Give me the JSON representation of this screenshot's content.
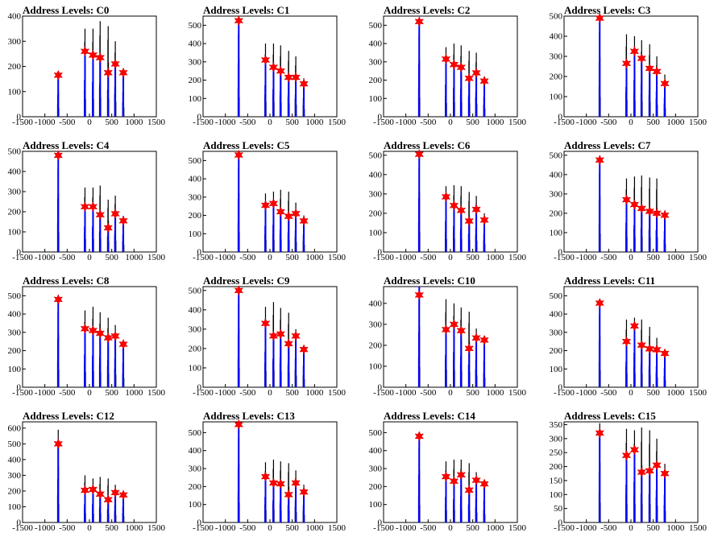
{
  "colors": {
    "histogram": "#0000ff",
    "peak_marker": "#ff0000",
    "axis": "#000000",
    "background": "#ffffff"
  },
  "chart_data": [
    {
      "title": "Address Levels: C0",
      "type": "bar",
      "xlim": [
        -1500,
        1500
      ],
      "ylim": [
        0,
        400
      ],
      "xticks": [
        "-1500",
        "-1000",
        "-500",
        "0",
        "500",
        "1000",
        "1500"
      ],
      "yticks": [
        "0",
        "100",
        "200",
        "300",
        "400"
      ],
      "peaks": {
        "x": [
          -700,
          -100,
          80,
          240,
          420,
          580,
          760
        ],
        "y": [
          165,
          260,
          245,
          235,
          175,
          210,
          175
        ]
      },
      "black_max": [
        170,
        350,
        350,
        380,
        360,
        300,
        190
      ],
      "blue_max": [
        160,
        265,
        250,
        240,
        180,
        215,
        180
      ]
    },
    {
      "title": "Address Levels: C1",
      "type": "bar",
      "xlim": [
        -1500,
        1500
      ],
      "ylim": [
        0,
        550
      ],
      "xticks": [
        "-1500",
        "-1000",
        "-500",
        "0",
        "500",
        "1000",
        "1500"
      ],
      "yticks": [
        "0",
        "100",
        "200",
        "300",
        "400",
        "500"
      ],
      "peaks": {
        "x": [
          -700,
          -100,
          80,
          240,
          420,
          580,
          760
        ],
        "y": [
          525,
          310,
          270,
          250,
          215,
          215,
          180
        ]
      },
      "black_max": [
        530,
        400,
        400,
        390,
        360,
        330,
        210
      ],
      "blue_max": [
        530,
        315,
        275,
        255,
        220,
        220,
        185
      ]
    },
    {
      "title": "Address Levels: C2",
      "type": "bar",
      "xlim": [
        -1500,
        1500
      ],
      "ylim": [
        0,
        550
      ],
      "xticks": [
        "-1500",
        "-1000",
        "-500",
        "0",
        "500",
        "1000",
        "1500"
      ],
      "yticks": [
        "0",
        "100",
        "200",
        "300",
        "400",
        "500"
      ],
      "peaks": {
        "x": [
          -700,
          -100,
          80,
          240,
          420,
          580,
          760
        ],
        "y": [
          520,
          315,
          285,
          270,
          210,
          240,
          195
        ]
      },
      "black_max": [
        525,
        380,
        400,
        390,
        360,
        350,
        220
      ],
      "blue_max": [
        525,
        320,
        290,
        275,
        215,
        245,
        200
      ]
    },
    {
      "title": "Address Levels: C3",
      "type": "bar",
      "xlim": [
        -1500,
        1500
      ],
      "ylim": [
        0,
        500
      ],
      "xticks": [
        "-1500",
        "-1000",
        "-500",
        "0",
        "500",
        "1000",
        "1500"
      ],
      "yticks": [
        "0",
        "100",
        "200",
        "300",
        "400",
        "500"
      ],
      "peaks": {
        "x": [
          -700,
          -100,
          80,
          240,
          420,
          580,
          760
        ],
        "y": [
          490,
          265,
          325,
          290,
          240,
          225,
          165
        ]
      },
      "black_max": [
        495,
        410,
        400,
        380,
        360,
        300,
        210
      ],
      "blue_max": [
        495,
        270,
        330,
        295,
        245,
        230,
        170
      ]
    },
    {
      "title": "Address Levels: C4",
      "type": "bar",
      "xlim": [
        -1500,
        1500
      ],
      "ylim": [
        0,
        500
      ],
      "xticks": [
        "-1500",
        "-1000",
        "-500",
        "0",
        "500",
        "1000",
        "1500"
      ],
      "yticks": [
        "0",
        "100",
        "200",
        "300",
        "400",
        "500"
      ],
      "peaks": {
        "x": [
          -700,
          -100,
          80,
          240,
          420,
          580,
          760
        ],
        "y": [
          480,
          225,
          225,
          185,
          120,
          190,
          155
        ]
      },
      "black_max": [
        485,
        320,
        320,
        330,
        260,
        280,
        180
      ],
      "blue_max": [
        485,
        230,
        230,
        190,
        125,
        195,
        160
      ]
    },
    {
      "title": "Address Levels: C5",
      "type": "bar",
      "xlim": [
        -1500,
        1500
      ],
      "ylim": [
        0,
        550
      ],
      "xticks": [
        "-1500",
        "-1000",
        "-500",
        "0",
        "500",
        "1000",
        "1500"
      ],
      "yticks": [
        "0",
        "100",
        "200",
        "300",
        "400",
        "500"
      ],
      "peaks": {
        "x": [
          -700,
          -100,
          80,
          240,
          420,
          580,
          760
        ],
        "y": [
          530,
          255,
          265,
          220,
          195,
          210,
          170
        ]
      },
      "black_max": [
        535,
        320,
        330,
        340,
        330,
        270,
        200
      ],
      "blue_max": [
        535,
        260,
        270,
        225,
        200,
        215,
        175
      ]
    },
    {
      "title": "Address Levels: C6",
      "type": "bar",
      "xlim": [
        -1500,
        1500
      ],
      "ylim": [
        0,
        520
      ],
      "xticks": [
        "-1500",
        "-1000",
        "-500",
        "0",
        "500",
        "1000",
        "1500"
      ],
      "yticks": [
        "0",
        "100",
        "200",
        "300",
        "400",
        "500"
      ],
      "peaks": {
        "x": [
          -700,
          -100,
          80,
          240,
          420,
          580,
          760
        ],
        "y": [
          505,
          285,
          240,
          215,
          160,
          220,
          165
        ]
      },
      "black_max": [
        510,
        340,
        345,
        340,
        310,
        290,
        200
      ],
      "blue_max": [
        510,
        290,
        245,
        220,
        165,
        225,
        170
      ]
    },
    {
      "title": "Address Levels: C7",
      "type": "bar",
      "xlim": [
        -1500,
        1500
      ],
      "ylim": [
        0,
        520
      ],
      "xticks": [
        "-1500",
        "-1000",
        "-500",
        "0",
        "500",
        "1000",
        "1500"
      ],
      "yticks": [
        "0",
        "100",
        "200",
        "300",
        "400",
        "500"
      ],
      "peaks": {
        "x": [
          -700,
          -100,
          80,
          240,
          420,
          580,
          760
        ],
        "y": [
          475,
          270,
          245,
          225,
          210,
          200,
          190
        ]
      },
      "black_max": [
        480,
        380,
        390,
        395,
        385,
        380,
        215
      ],
      "blue_max": [
        480,
        275,
        250,
        230,
        215,
        205,
        195
      ]
    },
    {
      "title": "Address Levels: C8",
      "type": "bar",
      "xlim": [
        -1500,
        1500
      ],
      "ylim": [
        0,
        550
      ],
      "xticks": [
        "-1500",
        "-1000",
        "-500",
        "0",
        "500",
        "1000",
        "1500"
      ],
      "yticks": [
        "0",
        "100",
        "200",
        "300",
        "400",
        "500"
      ],
      "peaks": {
        "x": [
          -700,
          -100,
          80,
          240,
          420,
          580,
          760
        ],
        "y": [
          480,
          320,
          310,
          295,
          270,
          280,
          235
        ]
      },
      "black_max": [
        485,
        420,
        440,
        410,
        380,
        340,
        250
      ],
      "blue_max": [
        485,
        325,
        315,
        300,
        275,
        285,
        240
      ]
    },
    {
      "title": "Address Levels: C9",
      "type": "bar",
      "xlim": [
        -1500,
        1500
      ],
      "ylim": [
        0,
        520
      ],
      "xticks": [
        "-1500",
        "-1000",
        "-500",
        "0",
        "500",
        "1000",
        "1500"
      ],
      "yticks": [
        "0",
        "100",
        "200",
        "300",
        "400",
        "500"
      ],
      "peaks": {
        "x": [
          -700,
          -100,
          80,
          240,
          420,
          580,
          760
        ],
        "y": [
          500,
          330,
          265,
          275,
          225,
          265,
          195
        ]
      },
      "black_max": [
        505,
        415,
        440,
        410,
        385,
        300,
        210
      ],
      "blue_max": [
        505,
        335,
        270,
        280,
        230,
        270,
        200
      ]
    },
    {
      "title": "Address Levels: C10",
      "type": "bar",
      "xlim": [
        -1500,
        1500
      ],
      "ylim": [
        0,
        480
      ],
      "xticks": [
        "-1500",
        "-1000",
        "-500",
        "0",
        "500",
        "1000",
        "1500"
      ],
      "yticks": [
        "0",
        "100",
        "200",
        "300",
        "400"
      ],
      "peaks": {
        "x": [
          -700,
          -100,
          80,
          240,
          420,
          580,
          760
        ],
        "y": [
          440,
          275,
          300,
          270,
          185,
          235,
          225
        ]
      },
      "black_max": [
        480,
        420,
        400,
        380,
        360,
        280,
        230
      ],
      "blue_max": [
        480,
        280,
        305,
        275,
        190,
        240,
        230
      ]
    },
    {
      "title": "Address Levels: C11",
      "type": "bar",
      "xlim": [
        -1500,
        1500
      ],
      "ylim": [
        0,
        550
      ],
      "xticks": [
        "-1500",
        "-1000",
        "-500",
        "0",
        "500",
        "1000",
        "1500"
      ],
      "yticks": [
        "0",
        "100",
        "200",
        "300",
        "400",
        "500"
      ],
      "peaks": {
        "x": [
          -700,
          -100,
          80,
          240,
          420,
          580,
          760
        ],
        "y": [
          460,
          250,
          335,
          230,
          210,
          205,
          185
        ]
      },
      "black_max": [
        465,
        370,
        380,
        370,
        330,
        270,
        200
      ],
      "blue_max": [
        465,
        255,
        340,
        235,
        215,
        210,
        190
      ]
    },
    {
      "title": "Address Levels: C12",
      "type": "bar",
      "xlim": [
        -1500,
        1500
      ],
      "ylim": [
        0,
        640
      ],
      "xticks": [
        "-1500",
        "-1000",
        "-500",
        "0",
        "500",
        "1000",
        "1500"
      ],
      "yticks": [
        "0",
        "100",
        "200",
        "300",
        "400",
        "500",
        "600"
      ],
      "peaks": {
        "x": [
          -700,
          -100,
          80,
          240,
          420,
          580,
          760
        ],
        "y": [
          500,
          205,
          210,
          180,
          145,
          190,
          175
        ]
      },
      "black_max": [
        590,
        300,
        280,
        290,
        280,
        240,
        200
      ],
      "blue_max": [
        505,
        210,
        215,
        185,
        150,
        195,
        180
      ]
    },
    {
      "title": "Address Levels: C13",
      "type": "bar",
      "xlim": [
        -1500,
        1500
      ],
      "ylim": [
        0,
        560
      ],
      "xticks": [
        "-1500",
        "-1000",
        "-500",
        "0",
        "500",
        "1000",
        "1500"
      ],
      "yticks": [
        "0",
        "100",
        "200",
        "300",
        "400",
        "500"
      ],
      "peaks": {
        "x": [
          -700,
          -100,
          80,
          240,
          420,
          580,
          760
        ],
        "y": [
          545,
          255,
          220,
          215,
          155,
          220,
          170
        ]
      },
      "black_max": [
        550,
        335,
        350,
        340,
        330,
        290,
        210
      ],
      "blue_max": [
        550,
        260,
        225,
        220,
        160,
        225,
        175
      ]
    },
    {
      "title": "Address Levels: C14",
      "type": "bar",
      "xlim": [
        -1500,
        1500
      ],
      "ylim": [
        0,
        560
      ],
      "xticks": [
        "-1500",
        "-1000",
        "-500",
        "0",
        "500",
        "1000",
        "1500"
      ],
      "yticks": [
        "0",
        "100",
        "200",
        "300",
        "400",
        "500"
      ],
      "peaks": {
        "x": [
          -700,
          -100,
          80,
          240,
          420,
          580,
          760
        ],
        "y": [
          480,
          255,
          230,
          265,
          180,
          235,
          215
        ]
      },
      "black_max": [
        485,
        340,
        350,
        350,
        330,
        280,
        230
      ],
      "blue_max": [
        485,
        260,
        235,
        270,
        185,
        240,
        220
      ]
    },
    {
      "title": "Address Levels: C15",
      "type": "bar",
      "xlim": [
        -1500,
        1500
      ],
      "ylim": [
        0,
        360
      ],
      "xticks": [
        "-1500",
        "-1000",
        "-500",
        "0",
        "500",
        "1000",
        "1500"
      ],
      "yticks": [
        "0",
        "50",
        "100",
        "150",
        "200",
        "250",
        "300",
        "350"
      ],
      "peaks": {
        "x": [
          -700,
          -100,
          80,
          240,
          420,
          580,
          760
        ],
        "y": [
          320,
          240,
          260,
          180,
          185,
          205,
          175
        ]
      },
      "black_max": [
        355,
        335,
        330,
        340,
        330,
        300,
        210
      ],
      "blue_max": [
        325,
        245,
        265,
        185,
        190,
        210,
        180
      ]
    }
  ]
}
